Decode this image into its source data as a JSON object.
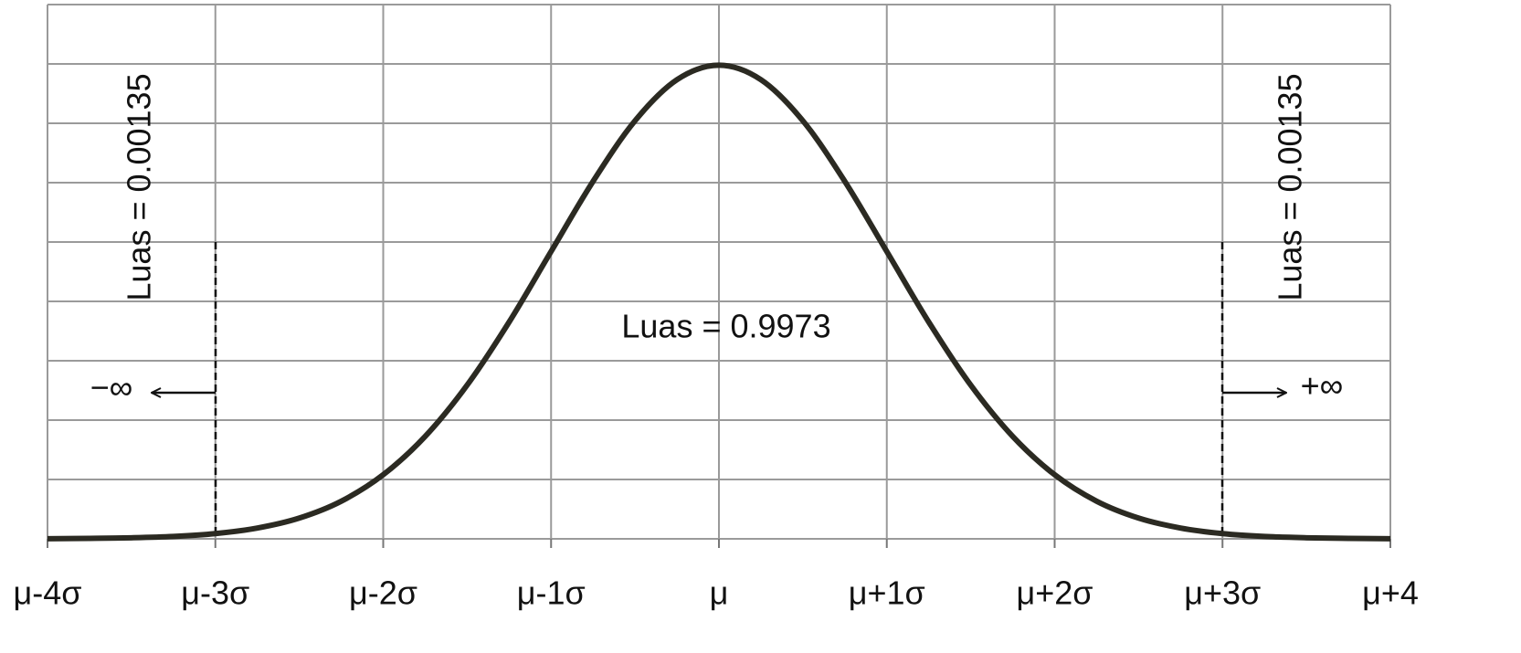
{
  "chart_data": {
    "type": "line",
    "x": [
      -4,
      -3.75,
      -3.5,
      -3.25,
      -3,
      -2.75,
      -2.5,
      -2.25,
      -2,
      -1.75,
      -1.5,
      -1.25,
      -1,
      -0.75,
      -0.5,
      -0.25,
      0,
      0.25,
      0.5,
      0.75,
      1,
      1.25,
      1.5,
      1.75,
      2,
      2.25,
      2.5,
      2.75,
      3,
      3.25,
      3.5,
      3.75,
      4
    ],
    "series": [
      {
        "color": "#2b2a22",
        "values": [
          0.0001,
          0.0004,
          0.0009,
          0.002,
          0.0044,
          0.0091,
          0.0175,
          0.0317,
          0.054,
          0.0863,
          0.1295,
          0.1826,
          0.242,
          0.3011,
          0.3521,
          0.3867,
          0.3989,
          0.3867,
          0.3521,
          0.3011,
          0.242,
          0.1826,
          0.1295,
          0.0863,
          0.054,
          0.0317,
          0.0175,
          0.0091,
          0.0044,
          0.002,
          0.0009,
          0.0004,
          0.0001
        ]
      }
    ],
    "xlim": [
      -4,
      4
    ],
    "xticks": [
      {
        "value": -4,
        "label": "μ-4σ"
      },
      {
        "value": -3,
        "label": "μ-3σ"
      },
      {
        "value": -2,
        "label": "μ-2σ"
      },
      {
        "value": -1,
        "label": "μ-1σ"
      },
      {
        "value": 0,
        "label": "μ"
      },
      {
        "value": 1,
        "label": "μ+1σ"
      },
      {
        "value": 2,
        "label": "μ+2σ"
      },
      {
        "value": 3,
        "label": "μ+3σ"
      },
      {
        "value": 4,
        "label": "μ+4"
      }
    ],
    "ylim": [
      0,
      0.45
    ],
    "yticks": [
      0,
      0.05,
      0.1,
      0.15,
      0.2,
      0.25,
      0.3,
      0.35,
      0.4,
      0.45
    ],
    "grid": true,
    "annotations": [
      "Luas = 0.00135",
      "Luas = 0.9973",
      "Luas = 0.00135",
      "−∞",
      "+∞"
    ]
  }
}
